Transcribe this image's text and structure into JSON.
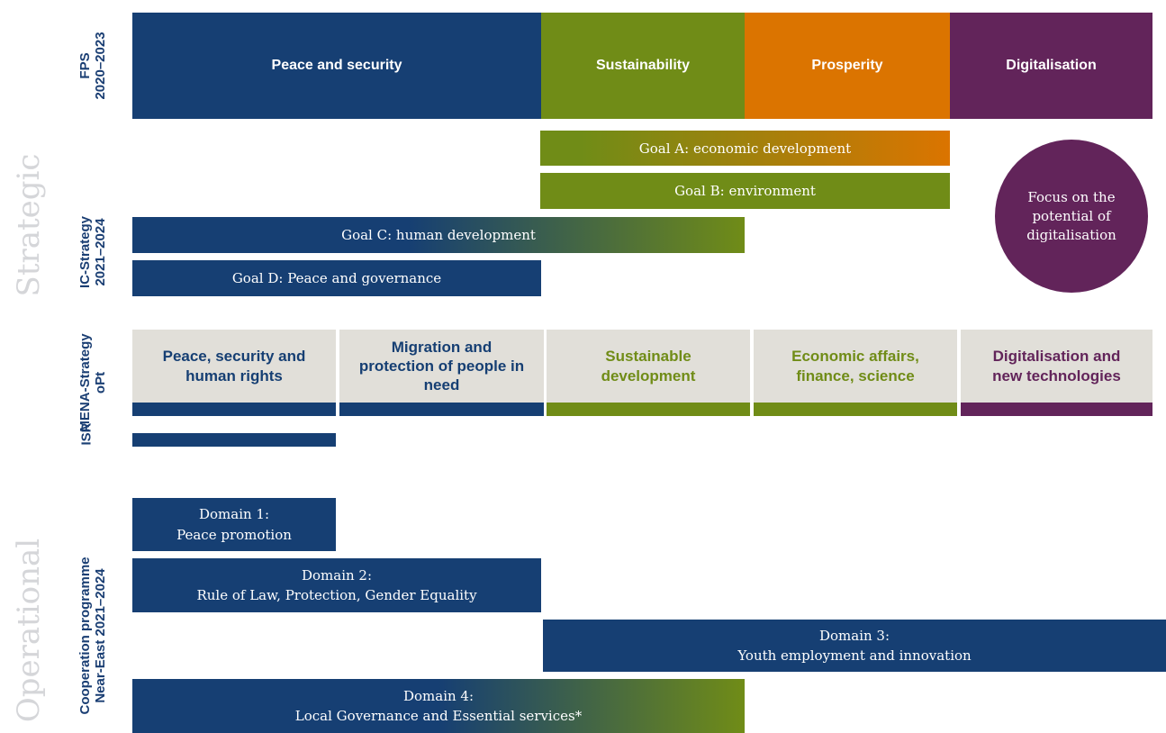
{
  "sections": {
    "strategic": "Strategic",
    "operational": "Operational"
  },
  "fps": {
    "label": [
      "FPS",
      "2020–2023"
    ],
    "items": [
      "Peace and security",
      "Sustainability",
      "Prosperity",
      "Digitalisation"
    ]
  },
  "ic": {
    "label": [
      "IC-Strategy",
      "2021–2024"
    ],
    "goals": [
      "Goal A: economic development",
      "Goal B: environment",
      "Goal C: human development",
      "Goal D: Peace and governance"
    ],
    "focus": "Focus on the potential of digitalisation"
  },
  "mena": {
    "label": [
      "MENA-Strategy",
      "oPt"
    ],
    "isr": "ISR",
    "items": [
      "Peace, security and human rights",
      "Migration and protection of people in need",
      "Sustainable development",
      "Economic affairs, finance, science",
      "Digitalisation and new technologies"
    ]
  },
  "coop": {
    "label": [
      "Cooperation programme",
      "Near-East 2021–2024"
    ],
    "domains": [
      {
        "title": "Domain 1:",
        "text": "Peace promotion"
      },
      {
        "title": "Domain 2:",
        "text": "Rule of Law, Protection, Gender Equality"
      },
      {
        "title": "Domain 3:",
        "text": "Youth employment and innovation"
      },
      {
        "title": "Domain 4:",
        "text": "Local Governance and Essential services*"
      }
    ]
  }
}
